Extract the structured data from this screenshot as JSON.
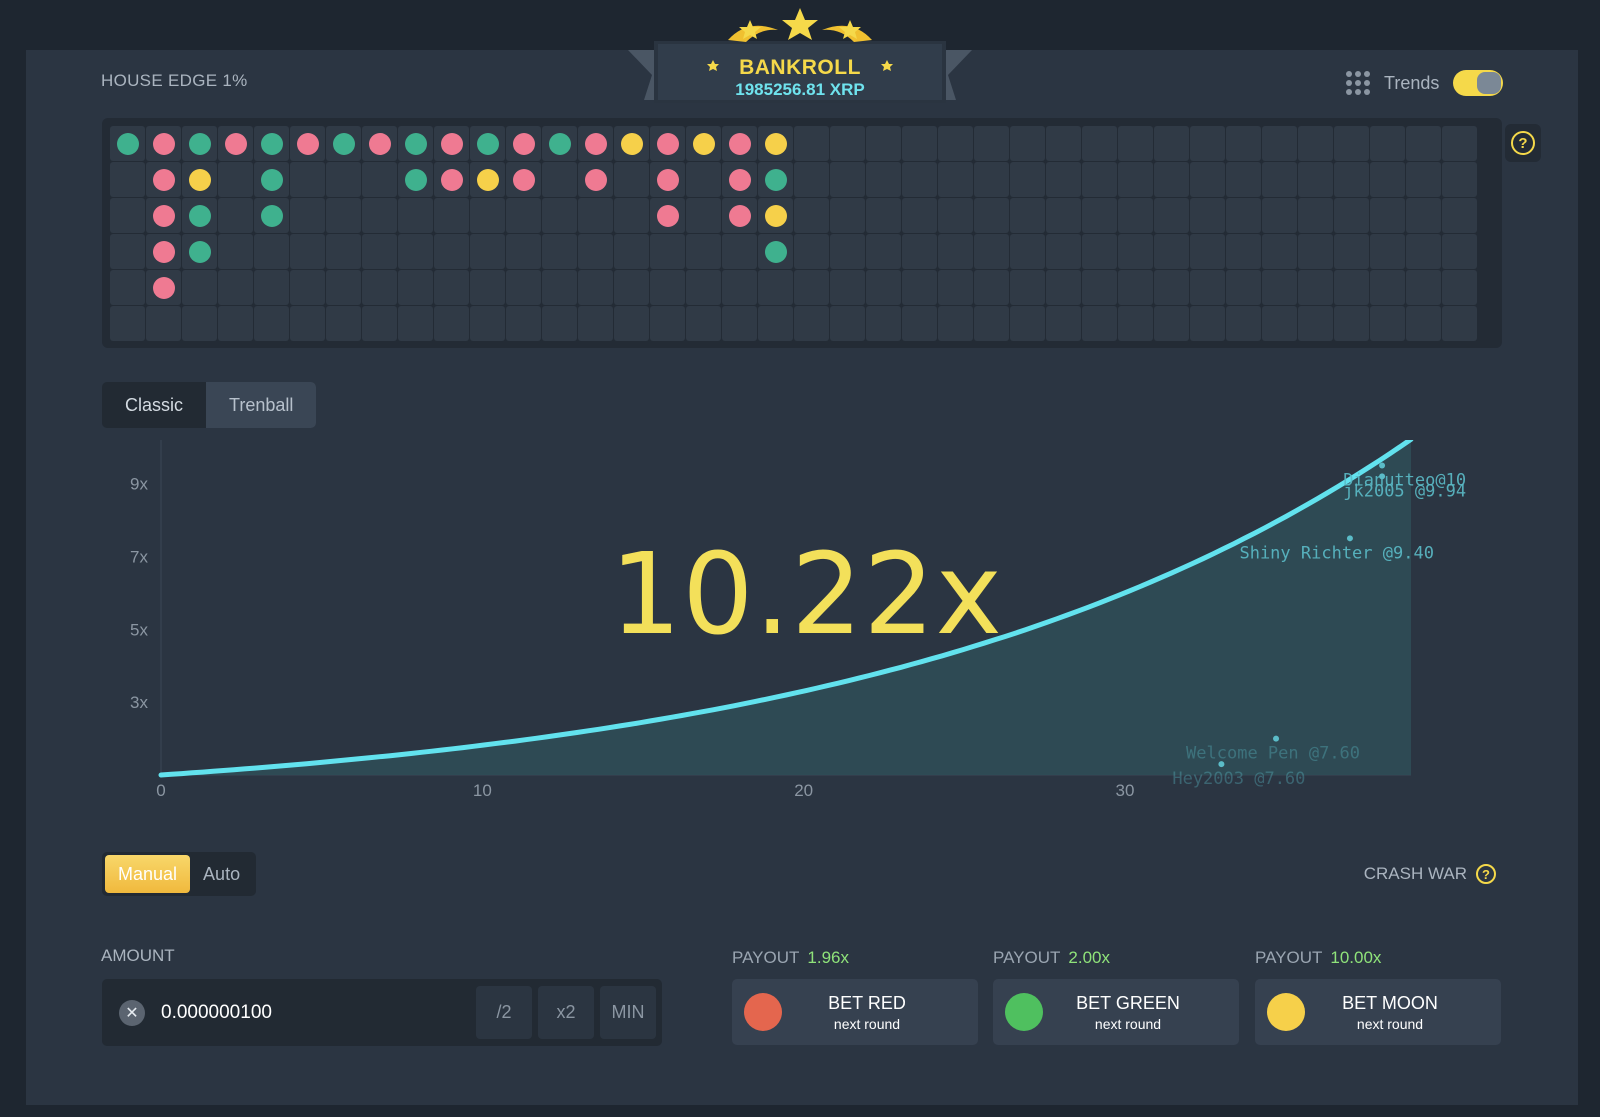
{
  "bankroll": {
    "title": "BANKROLL",
    "amount": "1985256.81 XRP"
  },
  "house_edge": "HOUSE EDGE 1%",
  "trends": {
    "label": "Trends",
    "enabled": true,
    "icon": "grid-icon"
  },
  "board": {
    "columns": 38,
    "rows": 6,
    "history": [
      [
        "green"
      ],
      [
        "red",
        "red",
        "red",
        "red",
        "red"
      ],
      [
        "green",
        "moon",
        "green",
        "green"
      ],
      [
        "red"
      ],
      [
        "green",
        "green",
        "green"
      ],
      [
        "red"
      ],
      [
        "green"
      ],
      [
        "red"
      ],
      [
        "green",
        "green"
      ],
      [
        "red",
        "red"
      ],
      [
        "green",
        "moon"
      ],
      [
        "red",
        "red"
      ],
      [
        "green"
      ],
      [
        "red",
        "red"
      ],
      [
        "moon"
      ],
      [
        "red",
        "red",
        "red"
      ],
      [
        "moon"
      ],
      [
        "red",
        "red",
        "red"
      ],
      [
        "moon",
        "green",
        "moon",
        "green"
      ]
    ],
    "help_icon": "question-icon"
  },
  "tabs": [
    {
      "label": "Classic",
      "active": false
    },
    {
      "label": "Trenball",
      "active": true
    }
  ],
  "multiplier": "10.22x",
  "chart_data": {
    "type": "area",
    "y_ticks": [
      "9x",
      "7x",
      "5x",
      "3x"
    ],
    "x_ticks": [
      "0",
      "10",
      "20",
      "30"
    ],
    "xlim": [
      0,
      38.9
    ],
    "ylim": [
      1,
      10.2
    ],
    "growth_end_x": 38.9,
    "growth_end_y": 10.22,
    "players": [
      {
        "name": "Dianutteo@10",
        "x": 38.0,
        "y": 9.5
      },
      {
        "name": "jk2005 @9.94",
        "x": 38.0,
        "y": 9.2
      },
      {
        "name": "Shiny Richter @9.40",
        "x": 37.0,
        "y": 7.5
      },
      {
        "name": "Welcome Pen @7.60",
        "x": 34.7,
        "y": 2.0
      },
      {
        "name": "Hey2003 @7.60",
        "x": 33.0,
        "y": 1.3
      }
    ]
  },
  "bet_mode": [
    {
      "label": "Manual",
      "active": true
    },
    {
      "label": "Auto",
      "active": false
    }
  ],
  "crash_war": "CRASH WAR",
  "amount": {
    "label": "AMOUNT",
    "value": "0.000000100",
    "half": "/2",
    "double": "x2",
    "min": "MIN"
  },
  "bets": [
    {
      "payout_label": "PAYOUT",
      "payout": "1.96x",
      "title": "BET RED",
      "sub": "next round",
      "color": "#e4664e"
    },
    {
      "payout_label": "PAYOUT",
      "payout": "2.00x",
      "title": "BET GREEN",
      "sub": "next round",
      "color": "#4fc05f"
    },
    {
      "payout_label": "PAYOUT",
      "payout": "10.00x",
      "title": "BET MOON",
      "sub": "next round",
      "color": "#f6d04a"
    }
  ],
  "colors": {
    "accent": "#f5d94a",
    "curve": "#62e2ee",
    "panel": "#2b3542"
  }
}
